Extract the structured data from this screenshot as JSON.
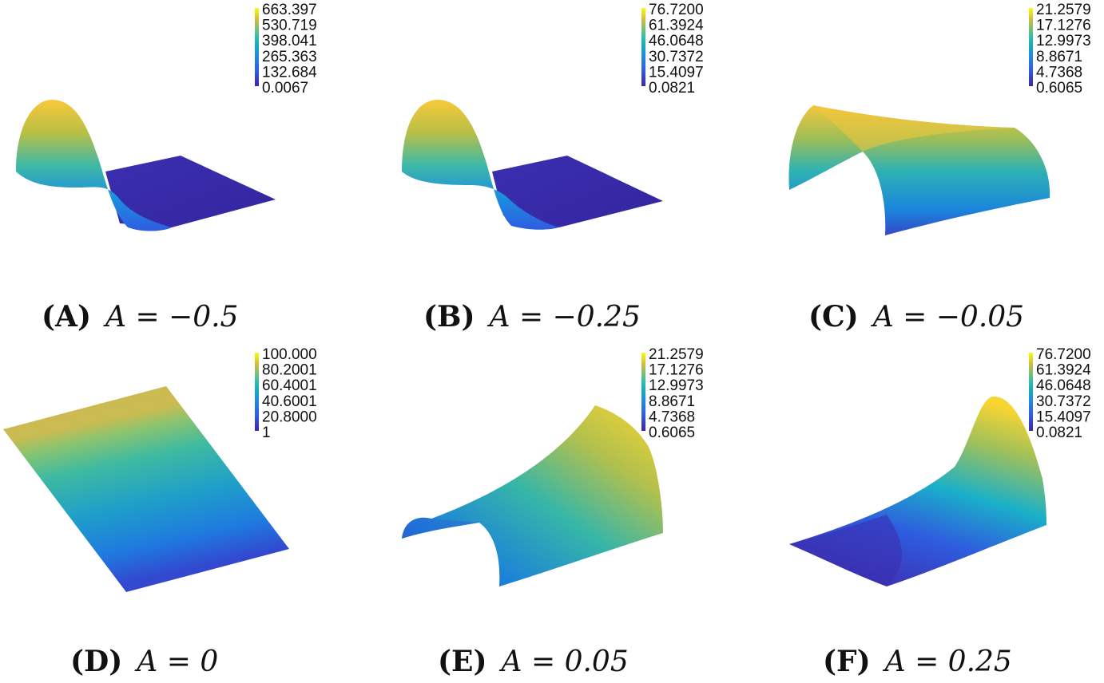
{
  "colormap": [
    "#3e26a8",
    "#2f5ce0",
    "#1b8fe0",
    "#16b3c0",
    "#5cc38a",
    "#b9bf45",
    "#f6c13d",
    "#f9fb15"
  ],
  "panels": [
    {
      "id": "A",
      "label": "(A)",
      "equation": "A = −0.5",
      "shape": "hump-left-flat-right",
      "colorbar": [
        "663.397",
        "530.719",
        "398.041",
        "265.363",
        "132.684",
        "0.0067"
      ]
    },
    {
      "id": "B",
      "label": "(B)",
      "equation": "A = −0.25",
      "shape": "hump-left-flat-right",
      "colorbar": [
        "76.7200",
        "61.3924",
        "46.0648",
        "30.7372",
        "15.4097",
        "0.0821"
      ]
    },
    {
      "id": "C",
      "label": "(C)",
      "equation": "A = −0.05",
      "shape": "curved-sheet",
      "colorbar": [
        "21.2579",
        "17.1276",
        "12.9973",
        "8.8671",
        "4.7368",
        "0.6065"
      ]
    },
    {
      "id": "D",
      "label": "(D)",
      "equation": "A = 0",
      "shape": "flat-plane",
      "colorbar": [
        "100.000",
        "80.2001",
        "60.4001",
        "40.6001",
        "20.8000",
        "1"
      ]
    },
    {
      "id": "E",
      "label": "(E)",
      "equation": "A = 0.05",
      "shape": "curved-sheet",
      "colorbar": [
        "21.2579",
        "17.1276",
        "12.9973",
        "8.8671",
        "4.7368",
        "0.6065"
      ]
    },
    {
      "id": "F",
      "label": "(F)",
      "equation": "A = 0.25",
      "shape": "flat-left-hump-right",
      "colorbar": [
        "76.7200",
        "61.3924",
        "46.0648",
        "30.7372",
        "15.4097",
        "0.0821"
      ]
    }
  ]
}
